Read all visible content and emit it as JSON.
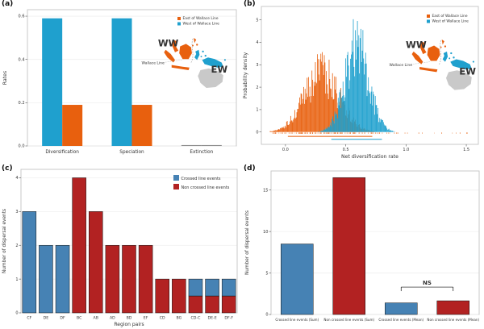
{
  "figure": {
    "panel_labels": {
      "a": "(a)",
      "b": "(b)",
      "c": "(c)",
      "d": "(d)"
    }
  },
  "colors": {
    "east_orange": "#E8600E",
    "west_blue": "#1FA0CE",
    "crossed_blue": "#4682B4",
    "non_crossed_red": "#B22222",
    "australia_gray": "#C9C9C9",
    "panel_border": "#c4c4c4",
    "grid": "#efefef",
    "axis_text": "#333333",
    "near_zero_bar": "#8a8a8a"
  },
  "map": {
    "ww_label": "WW",
    "ew_label": "EW",
    "wallace_line_label": "Wallace Line"
  },
  "legend_wallace": [
    {
      "label": "East of Wallace Line",
      "color": "#E8600E"
    },
    {
      "label": "West of Wallace Line",
      "color": "#1FA0CE"
    }
  ],
  "legend_events": [
    {
      "label": "Crossed line events",
      "color": "#4682B4"
    },
    {
      "label": "Non crossed line events",
      "color": "#B22222"
    }
  ],
  "chart_data": [
    {
      "panel": "a",
      "type": "bar",
      "title": "",
      "xlabel": "",
      "ylabel": "Rates",
      "categories": [
        "Diversification",
        "Speciation",
        "Extinction"
      ],
      "series": [
        {
          "name": "West of Wallace Line",
          "color": "#1FA0CE",
          "values": [
            0.59,
            0.59,
            0.004
          ]
        },
        {
          "name": "East of Wallace Line",
          "color": "#E8600E",
          "values": [
            0.19,
            0.19,
            0.004
          ]
        }
      ],
      "ylim": [
        0,
        0.63
      ],
      "yticks": [
        0.0,
        0.2,
        0.4,
        0.6
      ],
      "legend_position": "top-right",
      "grid": true
    },
    {
      "panel": "b",
      "type": "density-histogram",
      "title": "",
      "xlabel": "Net diversification rate",
      "ylabel": "Probability density",
      "xlim": [
        -0.2,
        1.6
      ],
      "ylim": [
        0,
        5.6
      ],
      "xticks": [
        0.0,
        0.5,
        1.0,
        1.5
      ],
      "yticks": [
        0,
        1,
        2,
        3,
        4,
        5
      ],
      "series": [
        {
          "name": "East of Wallace Line",
          "color": "#E8600E",
          "mean": 0.3,
          "sd": 0.145,
          "peak_density": 3.6,
          "range": [
            -0.13,
            1.0
          ],
          "hpd_interval": [
            0.02,
            0.72
          ]
        },
        {
          "name": "West of Wallace Line",
          "color": "#1FA0CE",
          "mean": 0.59,
          "sd": 0.1,
          "peak_density": 5.3,
          "range": [
            0.27,
            0.97
          ],
          "hpd_interval": [
            0.38,
            0.8
          ]
        }
      ],
      "rug": {
        "color": "#E8600E",
        "range": [
          -0.13,
          1.52
        ]
      },
      "legend_position": "top-right",
      "grid": false
    },
    {
      "panel": "c",
      "type": "stacked-bar",
      "title": "",
      "xlabel": "Region pairs",
      "ylabel": "Number of dispersal events",
      "categories": [
        "CF",
        "DE",
        "DF",
        "BC",
        "AB",
        "AD",
        "BD",
        "EF",
        "CD",
        "BG",
        "CD-C",
        "DE-E",
        "DF-F"
      ],
      "series": [
        {
          "name": "Non crossed line events",
          "color": "#B22222",
          "values": [
            0,
            0,
            0,
            4,
            3,
            2,
            2,
            2,
            1,
            1,
            0.5,
            0.5,
            0.5
          ]
        },
        {
          "name": "Crossed line events",
          "color": "#4682B4",
          "values": [
            3,
            2,
            2,
            0,
            0,
            0,
            0,
            0,
            0,
            0,
            0.5,
            0.5,
            0.5
          ]
        }
      ],
      "ylim": [
        0,
        4.25
      ],
      "yticks": [
        0,
        1,
        2,
        3,
        4
      ],
      "legend_position": "top-right",
      "grid": true
    },
    {
      "panel": "d",
      "type": "bar",
      "title": "",
      "xlabel": "",
      "ylabel": "Number of dispersal events",
      "categories": [
        "Crossed line events (Sum)",
        "Non crossed line events (Sum)",
        "Crossed line events (Mean)",
        "Non crossed line events (Mean)"
      ],
      "values": [
        8.5,
        16.5,
        1.4,
        1.65
      ],
      "bar_colors": [
        "#4682B4",
        "#B22222",
        "#4682B4",
        "#B22222"
      ],
      "ylim": [
        0,
        17.3
      ],
      "yticks": [
        0,
        5,
        10,
        15
      ],
      "annotation": {
        "text": "NS",
        "between_categories": [
          2,
          3
        ],
        "y": 3.3
      },
      "grid": true
    }
  ]
}
